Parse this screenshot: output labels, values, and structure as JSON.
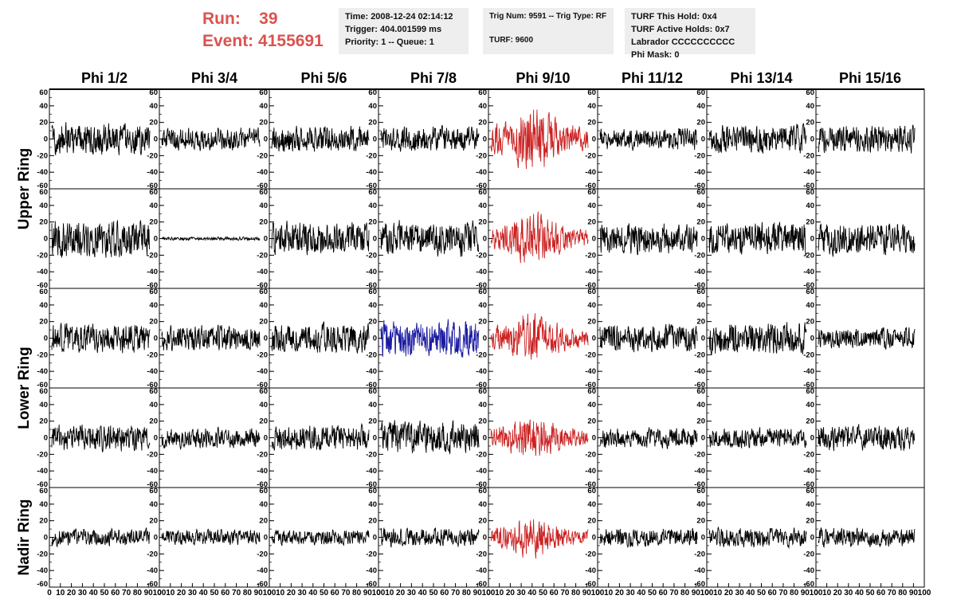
{
  "header": {
    "run_label": "Run:",
    "run_value": "39",
    "event_label": "Event:",
    "event_value": "4155691",
    "colors": {
      "run_text": "#d9534f",
      "info_bg": "#eeeeee"
    }
  },
  "info": {
    "time": "Time: 2008-12-24 02:14:12",
    "trigger": "Trigger: 404.001599 ms",
    "priority": "Priority: 1 -- Queue: 1",
    "trig_num": "Trig Num: 9591 -- Trig Type: RF",
    "turf": "TURF: 9600",
    "turf_hold": "TURF This Hold: 0x4",
    "turf_active": "TURF Active Holds: 0x7",
    "labrador": "Labrador CCCCCCCCCC",
    "phi_mask": "Phi Mask: 0"
  },
  "chart_data": {
    "type": "line",
    "columns": [
      "Phi 1/2",
      "Phi 3/4",
      "Phi 5/6",
      "Phi 7/8",
      "Phi 9/10",
      "Phi 11/12",
      "Phi 13/14",
      "Phi 15/16"
    ],
    "ring_labels": [
      "Upper Ring",
      "Lower Ring",
      "Nadir Ring"
    ],
    "rows": 5,
    "ring_row_groups": [
      [
        0,
        1
      ],
      [
        2,
        3
      ],
      [
        4,
        4
      ]
    ],
    "xlim": [
      0,
      100
    ],
    "ylim": [
      -60,
      60
    ],
    "ytick_labels": [
      "60",
      "40",
      "20",
      "0",
      "-20",
      "-40",
      "-60"
    ],
    "ytick_values": [
      60,
      40,
      20,
      0,
      -20,
      -40,
      -60
    ],
    "xtick_labels": [
      "0",
      "10",
      "20",
      "30",
      "40",
      "50",
      "60",
      "70",
      "80",
      "90",
      "100"
    ],
    "samples_per_trace": 256,
    "colors": {
      "default": "#000000",
      "triggered": "#cc2222",
      "highlight": "#1a1aa0"
    },
    "panel_colors": [
      [
        "default",
        "default",
        "default",
        "default",
        "triggered",
        "default",
        "default",
        "default"
      ],
      [
        "default",
        "default",
        "default",
        "default",
        "triggered",
        "default",
        "default",
        "default"
      ],
      [
        "default",
        "default",
        "default",
        "highlight",
        "triggered",
        "default",
        "default",
        "default"
      ],
      [
        "default",
        "default",
        "default",
        "default",
        "triggered",
        "default",
        "default",
        "default"
      ],
      [
        "default",
        "default",
        "default",
        "default",
        "triggered",
        "default",
        "default",
        "default"
      ]
    ],
    "panel_amplitudes": [
      [
        19,
        13,
        15,
        15,
        38,
        13,
        17,
        16
      ],
      [
        22,
        2,
        19,
        21,
        30,
        18,
        20,
        19
      ],
      [
        17,
        15,
        17,
        22,
        30,
        16,
        19,
        12
      ],
      [
        16,
        12,
        15,
        19,
        26,
        12,
        12,
        15
      ],
      [
        10,
        9,
        9,
        11,
        24,
        11,
        11,
        11
      ]
    ],
    "panel_envelope": [
      [
        "flat",
        "flat",
        "flat",
        "flat",
        "burst",
        "flat",
        "flat",
        "flat"
      ],
      [
        "flat",
        "flat",
        "flat",
        "flat",
        "burst",
        "flat",
        "flat",
        "flat"
      ],
      [
        "flat",
        "flat",
        "flat",
        "flat",
        "burst",
        "flat",
        "flat",
        "flat"
      ],
      [
        "flat",
        "flat",
        "flat",
        "flat",
        "burst",
        "flat",
        "flat",
        "flat"
      ],
      [
        "flat",
        "flat",
        "flat",
        "flat",
        "burst",
        "flat",
        "flat",
        "flat"
      ]
    ]
  }
}
